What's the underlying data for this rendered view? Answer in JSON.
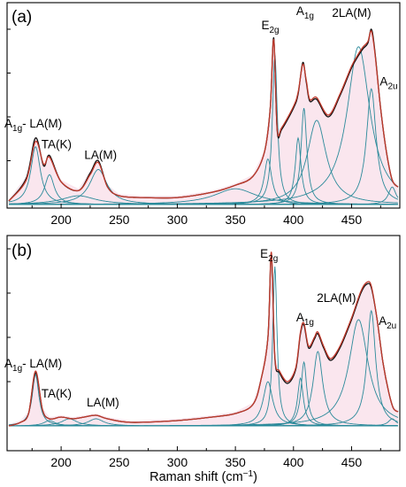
{
  "chart_data": [
    {
      "type": "line",
      "panel_label": "(a)",
      "x_range": [
        155,
        490
      ],
      "x_ticks": [
        200,
        250,
        300,
        350,
        400,
        450
      ],
      "series": [
        {
          "role": "measured",
          "color": "#111111",
          "x": [
            155,
            170,
            178,
            185,
            190,
            200,
            215,
            225,
            232,
            240,
            250,
            270,
            300,
            330,
            350,
            365,
            375,
            380,
            383,
            386,
            390,
            400,
            404,
            408,
            411,
            414,
            420,
            430,
            440,
            450,
            456,
            460,
            464,
            467,
            470,
            475,
            480,
            485,
            490
          ],
          "y": [
            0.02,
            0.15,
            0.38,
            0.22,
            0.28,
            0.13,
            0.08,
            0.18,
            0.25,
            0.1,
            0.05,
            0.04,
            0.04,
            0.07,
            0.11,
            0.16,
            0.3,
            0.55,
            0.95,
            0.42,
            0.43,
            0.55,
            0.63,
            0.81,
            0.7,
            0.59,
            0.6,
            0.5,
            0.62,
            0.78,
            0.85,
            0.89,
            0.92,
            1.0,
            0.88,
            0.55,
            0.3,
            0.14,
            0.1
          ]
        },
        {
          "role": "fit",
          "color": "#c0392b",
          "x": [
            155,
            170,
            178,
            185,
            190,
            200,
            215,
            225,
            232,
            240,
            250,
            270,
            300,
            330,
            350,
            365,
            375,
            380,
            383,
            386,
            390,
            400,
            404,
            408,
            411,
            414,
            420,
            430,
            440,
            450,
            456,
            460,
            464,
            467,
            470,
            475,
            480,
            485,
            490
          ],
          "y": [
            0.02,
            0.14,
            0.36,
            0.23,
            0.27,
            0.13,
            0.08,
            0.17,
            0.24,
            0.1,
            0.05,
            0.04,
            0.04,
            0.07,
            0.11,
            0.16,
            0.3,
            0.55,
            0.94,
            0.43,
            0.44,
            0.56,
            0.64,
            0.8,
            0.71,
            0.6,
            0.61,
            0.51,
            0.63,
            0.79,
            0.86,
            0.9,
            0.93,
            0.99,
            0.87,
            0.55,
            0.3,
            0.14,
            0.1
          ]
        }
      ],
      "components": [
        {
          "center": 178,
          "width": 5,
          "height": 0.33
        },
        {
          "center": 190,
          "width": 5,
          "height": 0.17
        },
        {
          "center": 232,
          "width": 9,
          "height": 0.2
        },
        {
          "center": 215,
          "width": 18,
          "height": 0.05
        },
        {
          "center": 350,
          "width": 22,
          "height": 0.09
        },
        {
          "center": 378,
          "width": 4,
          "height": 0.26
        },
        {
          "center": 384,
          "width": 2.6,
          "height": 0.85
        },
        {
          "center": 404,
          "width": 3,
          "height": 0.38
        },
        {
          "center": 409,
          "width": 3,
          "height": 0.55
        },
        {
          "center": 420,
          "width": 10,
          "height": 0.48
        },
        {
          "center": 456,
          "width": 12,
          "height": 0.9
        },
        {
          "center": 467,
          "width": 5,
          "height": 0.66
        },
        {
          "center": 485,
          "width": 4,
          "height": 0.1
        }
      ],
      "annotations": [
        {
          "text": "E",
          "sub": "2g",
          "x": 380,
          "y": 1.0
        },
        {
          "text": "A",
          "sub": "1g",
          "x": 410,
          "y": 1.08
        },
        {
          "text": "2LA(M)",
          "sub": "",
          "x": 450,
          "y": 1.07
        },
        {
          "text": "A",
          "sub": "2u",
          "x": 482,
          "y": 0.68
        },
        {
          "text": "A",
          "sub": "1g",
          "suffix": "- LA(M)",
          "x": 176,
          "y": 0.44
        },
        {
          "text": "TA(K)",
          "sub": "",
          "x": 196,
          "y": 0.32
        },
        {
          "text": "LA(M)",
          "sub": "",
          "x": 234,
          "y": 0.26
        }
      ]
    },
    {
      "type": "line",
      "panel_label": "(b)",
      "x_range": [
        155,
        490
      ],
      "x_ticks": [
        200,
        250,
        300,
        350,
        400,
        450
      ],
      "x_label": "Raman shift (cm",
      "x_label_sup": "−1",
      "x_label_end": ")",
      "series": [
        {
          "role": "measured",
          "color": "#111111",
          "x": [
            155,
            165,
            172,
            178,
            184,
            190,
            200,
            210,
            220,
            230,
            240,
            260,
            300,
            330,
            350,
            365,
            372,
            378,
            381,
            384,
            388,
            395,
            402,
            406,
            409,
            413,
            418,
            421,
            426,
            432,
            440,
            450,
            458,
            463,
            467,
            472,
            477,
            482,
            486,
            490
          ],
          "y": [
            0.0,
            0.02,
            0.07,
            0.3,
            0.09,
            0.04,
            0.05,
            0.04,
            0.05,
            0.06,
            0.04,
            0.02,
            0.03,
            0.05,
            0.07,
            0.12,
            0.26,
            0.5,
            0.97,
            0.38,
            0.3,
            0.24,
            0.32,
            0.52,
            0.57,
            0.44,
            0.49,
            0.52,
            0.44,
            0.37,
            0.44,
            0.6,
            0.75,
            0.8,
            0.78,
            0.6,
            0.36,
            0.19,
            0.1,
            0.08
          ]
        },
        {
          "role": "fit",
          "color": "#c0392b",
          "x": [
            155,
            165,
            172,
            178,
            184,
            190,
            200,
            210,
            220,
            230,
            240,
            260,
            300,
            330,
            350,
            365,
            372,
            378,
            381,
            384,
            388,
            395,
            402,
            406,
            409,
            413,
            418,
            421,
            426,
            432,
            440,
            450,
            458,
            463,
            467,
            472,
            477,
            482,
            486,
            490
          ],
          "y": [
            0.0,
            0.02,
            0.07,
            0.31,
            0.09,
            0.04,
            0.05,
            0.04,
            0.05,
            0.06,
            0.04,
            0.02,
            0.03,
            0.05,
            0.07,
            0.12,
            0.26,
            0.5,
            0.98,
            0.39,
            0.31,
            0.25,
            0.33,
            0.53,
            0.58,
            0.45,
            0.5,
            0.53,
            0.45,
            0.38,
            0.45,
            0.61,
            0.76,
            0.81,
            0.79,
            0.6,
            0.36,
            0.19,
            0.1,
            0.08
          ]
        }
      ],
      "components": [
        {
          "center": 178,
          "width": 3.5,
          "height": 0.29
        },
        {
          "center": 190,
          "width": 6,
          "height": 0.03
        },
        {
          "center": 207,
          "width": 8,
          "height": 0.04
        },
        {
          "center": 230,
          "width": 8,
          "height": 0.04
        },
        {
          "center": 378,
          "width": 5,
          "height": 0.25
        },
        {
          "center": 384,
          "width": 2.2,
          "height": 0.9
        },
        {
          "center": 406,
          "width": 3,
          "height": 0.27
        },
        {
          "center": 409,
          "width": 3,
          "height": 0.36
        },
        {
          "center": 421,
          "width": 5,
          "height": 0.42
        },
        {
          "center": 456,
          "width": 10,
          "height": 0.6
        },
        {
          "center": 467,
          "width": 4.5,
          "height": 0.65
        },
        {
          "center": 485,
          "width": 4,
          "height": 0.04
        }
      ],
      "annotations": [
        {
          "text": "E",
          "sub": "2g",
          "x": 379,
          "y": 0.95
        },
        {
          "text": "A",
          "sub": "1g",
          "x": 410,
          "y": 0.59
        },
        {
          "text": "2LA(M)",
          "sub": "",
          "x": 437,
          "y": 0.7
        },
        {
          "text": "A",
          "sub": "2u",
          "x": 481,
          "y": 0.57
        },
        {
          "text": "A",
          "sub": "1g",
          "suffix": "- LA(M)",
          "x": 176,
          "y": 0.33
        },
        {
          "text": "TA(K)",
          "sub": "",
          "x": 196,
          "y": 0.16
        },
        {
          "text": "LA(M)",
          "sub": "",
          "x": 236,
          "y": 0.11
        }
      ]
    }
  ]
}
